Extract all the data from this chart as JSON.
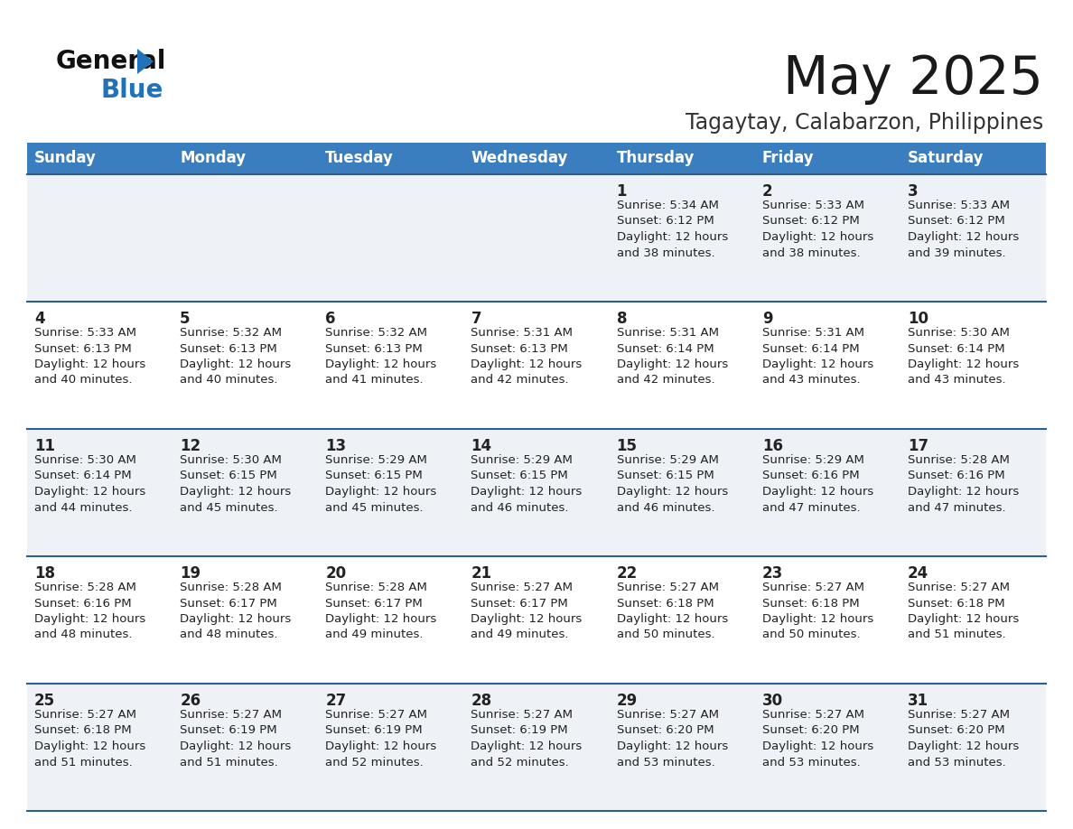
{
  "title": "May 2025",
  "subtitle": "Tagaytay, Calabarzon, Philippines",
  "header_bg_color": "#3a7ebf",
  "header_text_color": "#ffffff",
  "cell_bg_row0": "#eef2f7",
  "cell_bg_row1": "#ffffff",
  "row_line_color": "#2e5f8a",
  "days_of_week": [
    "Sunday",
    "Monday",
    "Tuesday",
    "Wednesday",
    "Thursday",
    "Friday",
    "Saturday"
  ],
  "calendar_data": [
    [
      {
        "day": "",
        "sunrise": "",
        "sunset": "",
        "daylight": ""
      },
      {
        "day": "",
        "sunrise": "",
        "sunset": "",
        "daylight": ""
      },
      {
        "day": "",
        "sunrise": "",
        "sunset": "",
        "daylight": ""
      },
      {
        "day": "",
        "sunrise": "",
        "sunset": "",
        "daylight": ""
      },
      {
        "day": "1",
        "sunrise": "5:34 AM",
        "sunset": "6:12 PM",
        "daylight": "12 hours and 38 minutes."
      },
      {
        "day": "2",
        "sunrise": "5:33 AM",
        "sunset": "6:12 PM",
        "daylight": "12 hours and 38 minutes."
      },
      {
        "day": "3",
        "sunrise": "5:33 AM",
        "sunset": "6:12 PM",
        "daylight": "12 hours and 39 minutes."
      }
    ],
    [
      {
        "day": "4",
        "sunrise": "5:33 AM",
        "sunset": "6:13 PM",
        "daylight": "12 hours and 40 minutes."
      },
      {
        "day": "5",
        "sunrise": "5:32 AM",
        "sunset": "6:13 PM",
        "daylight": "12 hours and 40 minutes."
      },
      {
        "day": "6",
        "sunrise": "5:32 AM",
        "sunset": "6:13 PM",
        "daylight": "12 hours and 41 minutes."
      },
      {
        "day": "7",
        "sunrise": "5:31 AM",
        "sunset": "6:13 PM",
        "daylight": "12 hours and 42 minutes."
      },
      {
        "day": "8",
        "sunrise": "5:31 AM",
        "sunset": "6:14 PM",
        "daylight": "12 hours and 42 minutes."
      },
      {
        "day": "9",
        "sunrise": "5:31 AM",
        "sunset": "6:14 PM",
        "daylight": "12 hours and 43 minutes."
      },
      {
        "day": "10",
        "sunrise": "5:30 AM",
        "sunset": "6:14 PM",
        "daylight": "12 hours and 43 minutes."
      }
    ],
    [
      {
        "day": "11",
        "sunrise": "5:30 AM",
        "sunset": "6:14 PM",
        "daylight": "12 hours and 44 minutes."
      },
      {
        "day": "12",
        "sunrise": "5:30 AM",
        "sunset": "6:15 PM",
        "daylight": "12 hours and 45 minutes."
      },
      {
        "day": "13",
        "sunrise": "5:29 AM",
        "sunset": "6:15 PM",
        "daylight": "12 hours and 45 minutes."
      },
      {
        "day": "14",
        "sunrise": "5:29 AM",
        "sunset": "6:15 PM",
        "daylight": "12 hours and 46 minutes."
      },
      {
        "day": "15",
        "sunrise": "5:29 AM",
        "sunset": "6:15 PM",
        "daylight": "12 hours and 46 minutes."
      },
      {
        "day": "16",
        "sunrise": "5:29 AM",
        "sunset": "6:16 PM",
        "daylight": "12 hours and 47 minutes."
      },
      {
        "day": "17",
        "sunrise": "5:28 AM",
        "sunset": "6:16 PM",
        "daylight": "12 hours and 47 minutes."
      }
    ],
    [
      {
        "day": "18",
        "sunrise": "5:28 AM",
        "sunset": "6:16 PM",
        "daylight": "12 hours and 48 minutes."
      },
      {
        "day": "19",
        "sunrise": "5:28 AM",
        "sunset": "6:17 PM",
        "daylight": "12 hours and 48 minutes."
      },
      {
        "day": "20",
        "sunrise": "5:28 AM",
        "sunset": "6:17 PM",
        "daylight": "12 hours and 49 minutes."
      },
      {
        "day": "21",
        "sunrise": "5:27 AM",
        "sunset": "6:17 PM",
        "daylight": "12 hours and 49 minutes."
      },
      {
        "day": "22",
        "sunrise": "5:27 AM",
        "sunset": "6:18 PM",
        "daylight": "12 hours and 50 minutes."
      },
      {
        "day": "23",
        "sunrise": "5:27 AM",
        "sunset": "6:18 PM",
        "daylight": "12 hours and 50 minutes."
      },
      {
        "day": "24",
        "sunrise": "5:27 AM",
        "sunset": "6:18 PM",
        "daylight": "12 hours and 51 minutes."
      }
    ],
    [
      {
        "day": "25",
        "sunrise": "5:27 AM",
        "sunset": "6:18 PM",
        "daylight": "12 hours and 51 minutes."
      },
      {
        "day": "26",
        "sunrise": "5:27 AM",
        "sunset": "6:19 PM",
        "daylight": "12 hours and 51 minutes."
      },
      {
        "day": "27",
        "sunrise": "5:27 AM",
        "sunset": "6:19 PM",
        "daylight": "12 hours and 52 minutes."
      },
      {
        "day": "28",
        "sunrise": "5:27 AM",
        "sunset": "6:19 PM",
        "daylight": "12 hours and 52 minutes."
      },
      {
        "day": "29",
        "sunrise": "5:27 AM",
        "sunset": "6:20 PM",
        "daylight": "12 hours and 53 minutes."
      },
      {
        "day": "30",
        "sunrise": "5:27 AM",
        "sunset": "6:20 PM",
        "daylight": "12 hours and 53 minutes."
      },
      {
        "day": "31",
        "sunrise": "5:27 AM",
        "sunset": "6:20 PM",
        "daylight": "12 hours and 53 minutes."
      }
    ]
  ]
}
